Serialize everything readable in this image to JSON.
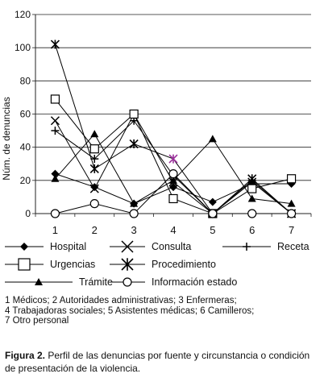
{
  "chart_data": {
    "type": "line",
    "ylabel": "Núm. de denuncias",
    "xlabel": "",
    "x": [
      1,
      2,
      3,
      4,
      5,
      6,
      7
    ],
    "ylim": [
      0,
      120
    ],
    "yticks": [
      0,
      20,
      40,
      60,
      80,
      100,
      120
    ],
    "grid": "horizontal",
    "legend_position": "bottom",
    "series": [
      {
        "name": "Hospital",
        "marker": "diamond",
        "values": [
          24,
          16,
          6,
          16,
          7,
          18,
          18
        ]
      },
      {
        "name": "Consulta",
        "marker": "x",
        "values": [
          56,
          15,
          60,
          19,
          0,
          19,
          0
        ]
      },
      {
        "name": "Receta",
        "marker": "plus",
        "values": [
          50,
          33,
          56,
          23,
          0,
          20,
          0
        ]
      },
      {
        "name": "Urgencias",
        "marker": "square",
        "values": [
          69,
          39,
          60,
          9,
          0,
          15,
          21
        ]
      },
      {
        "name": "Procedimiento",
        "marker": "asterisk",
        "values": [
          102,
          27,
          42,
          33,
          0,
          21,
          0
        ],
        "highlight": {
          "index": 3,
          "color": "#9b2f9b"
        }
      },
      {
        "name": "Trámite",
        "marker": "triangle",
        "values": [
          21,
          48,
          6,
          20,
          45,
          9,
          6
        ]
      },
      {
        "name": "Información estado",
        "marker": "circle",
        "values": [
          0,
          6,
          0,
          24,
          0,
          0,
          0
        ]
      }
    ]
  },
  "notes": {
    "line1": "1 Médicos; 2 Autoridades administrativas; 3 Enfermeras;",
    "line2": "4 Trabajadoras sociales; 5 Asistentes médicas; 6 Camilleros;",
    "line3": "7 Otro personal"
  },
  "caption": {
    "label": "Figura 2.",
    "text": " Perfil de las denuncias por fuente y circunstancia o condición de presentación de la violencia."
  }
}
